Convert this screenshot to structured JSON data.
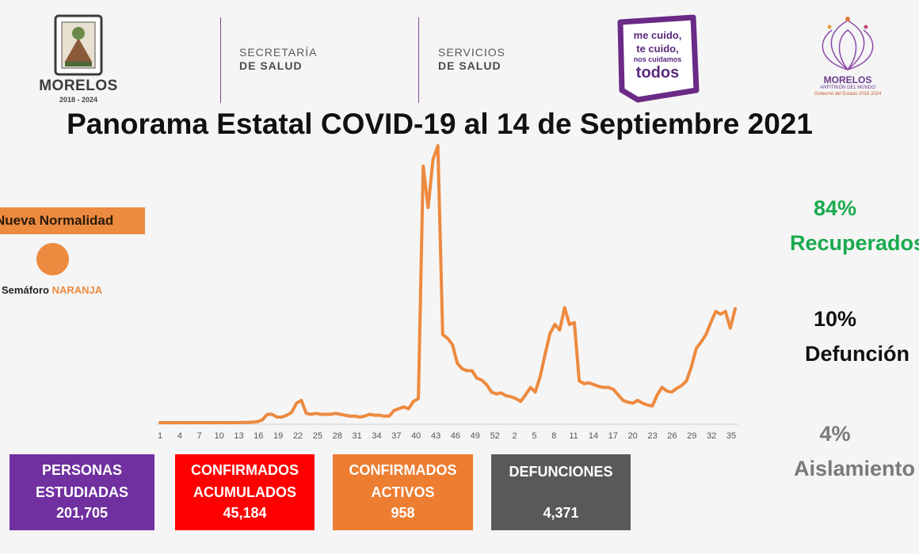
{
  "header": {
    "state_name": "MORELOS",
    "state_years": "2018 - 2024",
    "agency1_line1": "SECRETARÍA",
    "agency1_line2": "DE SALUD",
    "agency2_line1": "SERVICIOS",
    "agency2_line2": "DE SALUD",
    "campaign_line1": "me cuido,",
    "campaign_line2": "te cuido,",
    "campaign_line3": "nos cuidamos",
    "campaign_line4": "todos",
    "gov_logo_name": "MORELOS",
    "gov_logo_sub": "ANFITRIÓN DEL MUNDO",
    "gov_logo_sub2": "Gobierno del Estado 2018 2024"
  },
  "title": "Panorama Estatal COVID-19 al 14 de Septiembre 2021",
  "legend": {
    "normalidad": "Nueva Normalidad",
    "semaforo_label": "Semáforo",
    "semaforo_color": "NARANJA"
  },
  "stats": [
    {
      "value": "84%",
      "label": "Recuperados",
      "color": "#1aaa4e"
    },
    {
      "value": "10%",
      "label": "Defunción",
      "color": "#111111"
    },
    {
      "value": "4%",
      "label": "Aislamiento",
      "color": "#7a7a7a"
    }
  ],
  "boxes": [
    {
      "label": "PERSONAS\nESTUDIADAS",
      "value": "201,705",
      "color": "#7030a0"
    },
    {
      "label": "CONFIRMADOS\nACUMULADOS",
      "value": "45,184",
      "color": "#ff0000"
    },
    {
      "label": "CONFIRMADOS\nACTIVOS",
      "value": "958",
      "color": "#ed7d31"
    },
    {
      "label": "DEFUNCIONES",
      "value": "4,371",
      "color": "#595959"
    }
  ],
  "chart_data": {
    "type": "line",
    "title": "",
    "xlabel": "",
    "ylabel": "",
    "line_color": "#ed8a3f",
    "x_tick_labels": [
      "1",
      "4",
      "7",
      "10",
      "13",
      "16",
      "19",
      "22",
      "25",
      "28",
      "31",
      "34",
      "37",
      "40",
      "43",
      "46",
      "49",
      "52",
      "2",
      "5",
      "8",
      "11",
      "14",
      "17",
      "20",
      "23",
      "26",
      "29",
      "32",
      "35"
    ],
    "values": [
      0,
      0,
      0,
      0,
      0,
      0,
      0,
      0,
      0,
      0,
      0,
      0,
      0,
      0,
      0,
      0,
      0,
      0.2,
      0.2,
      0.5,
      1,
      3,
      9,
      9,
      6,
      6,
      8,
      11,
      21,
      24,
      10,
      9,
      10,
      9,
      9,
      9,
      10,
      9,
      8,
      7,
      7,
      6,
      7,
      9,
      8,
      8,
      7,
      7,
      13,
      15,
      17,
      15,
      23,
      26,
      277,
      232,
      284,
      299,
      95,
      91,
      84,
      64,
      58,
      56,
      56,
      48,
      46,
      41,
      33,
      31,
      32,
      29,
      28,
      26,
      23,
      30,
      38,
      33,
      50,
      74,
      96,
      106,
      100,
      124,
      106,
      108,
      45,
      42,
      43,
      41,
      39,
      38,
      38,
      36,
      30,
      24,
      22,
      21,
      24,
      21,
      19,
      18,
      30,
      38,
      34,
      33,
      37,
      40,
      45,
      60,
      80,
      87,
      95,
      108,
      120,
      117,
      120,
      102,
      123
    ]
  }
}
